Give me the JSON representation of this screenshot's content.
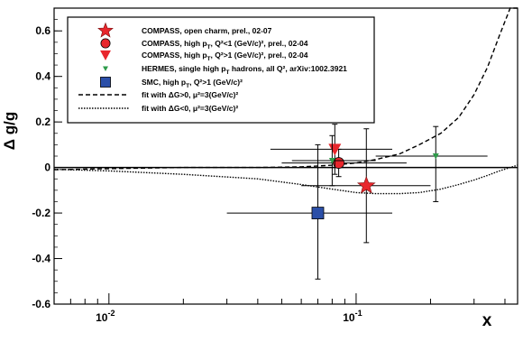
{
  "chart_data": {
    "type": "scatter",
    "title": "",
    "xlabel": "x",
    "ylabel": "Δ g/g",
    "x_scale": "log",
    "xlim": [
      0.006,
      0.45
    ],
    "ylim": [
      -0.6,
      0.7
    ],
    "x_ticks": [
      {
        "value": 0.01,
        "base": "10",
        "exp": "-2"
      },
      {
        "value": 0.1,
        "base": "10",
        "exp": "-1"
      }
    ],
    "y_ticks": [
      -0.6,
      -0.4,
      -0.2,
      0,
      0.2,
      0.4,
      0.6
    ],
    "grid": false,
    "legend_position": "top",
    "series": [
      {
        "name": "COMPASS, open charm, prel., 02-07",
        "marker": "star",
        "color": "#e8262c",
        "points": [
          {
            "x": 0.11,
            "y": -0.08,
            "xlo": 0.06,
            "xhi": 0.2,
            "ylo": -0.33,
            "yhi": 0.17
          }
        ]
      },
      {
        "name": "COMPASS, high pT, Q2<1 (GeV/c)2, prel., 02-04",
        "marker": "circle",
        "color": "#e8262c",
        "points": [
          {
            "x": 0.085,
            "y": 0.02,
            "xlo": 0.05,
            "xhi": 0.16,
            "ylo": -0.04,
            "yhi": 0.08
          }
        ]
      },
      {
        "name": "COMPASS, high pT, Q2>1 (GeV/c)2, prel., 02-04",
        "marker": "triangle-down",
        "color": "#e8262c",
        "points": [
          {
            "x": 0.082,
            "y": 0.08,
            "xlo": 0.045,
            "xhi": 0.14,
            "ylo": -0.03,
            "yhi": 0.19
          }
        ]
      },
      {
        "name": "HERMES, single high pT hadrons, all Q2, arXiv:1002.3921",
        "marker": "triangle-down-small",
        "color": "#2e9b4a",
        "points": [
          {
            "x": 0.08,
            "y": 0.03,
            "xlo": 0.055,
            "xhi": 0.12,
            "ylo": -0.08,
            "yhi": 0.14
          },
          {
            "x": 0.21,
            "y": 0.05,
            "xlo": 0.12,
            "xhi": 0.34,
            "ylo": -0.15,
            "yhi": 0.18
          }
        ]
      },
      {
        "name": "SMC, high pT, Q2>1 (GeV/c)2",
        "marker": "square",
        "color": "#2b4fa8",
        "points": [
          {
            "x": 0.07,
            "y": -0.2,
            "xlo": 0.03,
            "xhi": 0.14,
            "ylo": -0.49,
            "yhi": 0.1
          }
        ]
      }
    ],
    "fits": [
      {
        "name": "fit with ΔG>0, μ2=3(GeV/c)2",
        "style": "dashed",
        "x": [
          0.006,
          0.01,
          0.02,
          0.04,
          0.06,
          0.08,
          0.1,
          0.12,
          0.15,
          0.18,
          0.22,
          0.26,
          0.3,
          0.34,
          0.38,
          0.42,
          0.45
        ],
        "y": [
          -0.01,
          -0.005,
          0.0,
          0.0,
          0.003,
          0.01,
          0.02,
          0.035,
          0.06,
          0.1,
          0.15,
          0.22,
          0.32,
          0.44,
          0.58,
          0.7,
          0.78
        ]
      },
      {
        "name": "fit with ΔG<0, μ2=3(GeV/c)2",
        "style": "dotted",
        "x": [
          0.006,
          0.01,
          0.02,
          0.04,
          0.06,
          0.08,
          0.1,
          0.12,
          0.15,
          0.18,
          0.22,
          0.26,
          0.3,
          0.34,
          0.38,
          0.42,
          0.45
        ],
        "y": [
          -0.008,
          -0.015,
          -0.03,
          -0.05,
          -0.075,
          -0.095,
          -0.11,
          -0.115,
          -0.115,
          -0.11,
          -0.095,
          -0.075,
          -0.055,
          -0.035,
          -0.015,
          0.0,
          0.01
        ]
      }
    ],
    "legend": [
      {
        "marker": "star",
        "color": "#e8262c",
        "text": "COMPASS, open charm, prel., 02-07"
      },
      {
        "marker": "circle",
        "color": "#e8262c",
        "text": "COMPASS, high p",
        "sub": "T",
        "tail": ", Q²<1 (GeV/c)², prel., 02-04"
      },
      {
        "marker": "triangle-down",
        "color": "#e8262c",
        "text": "COMPASS, high p",
        "sub": "T",
        "tail": ", Q²>1 (GeV/c)², prel., 02-04"
      },
      {
        "marker": "triangle-down-small",
        "color": "#2e9b4a",
        "text": "HERMES, single high p",
        "sub": "T",
        "tail": " hadrons, all Q², arXiv:1002.3921"
      },
      {
        "marker": "square",
        "color": "#2b4fa8",
        "text": "SMC, high p",
        "sub": "T",
        "tail": ", Q²>1 (GeV/c)²"
      },
      {
        "marker": "dashed",
        "color": "#000000",
        "text": "fit with ΔG>0, μ²=3(GeV/c)²"
      },
      {
        "marker": "dotted",
        "color": "#000000",
        "text": "fit with ΔG<0, μ²=3(GeV/c)²"
      }
    ]
  }
}
